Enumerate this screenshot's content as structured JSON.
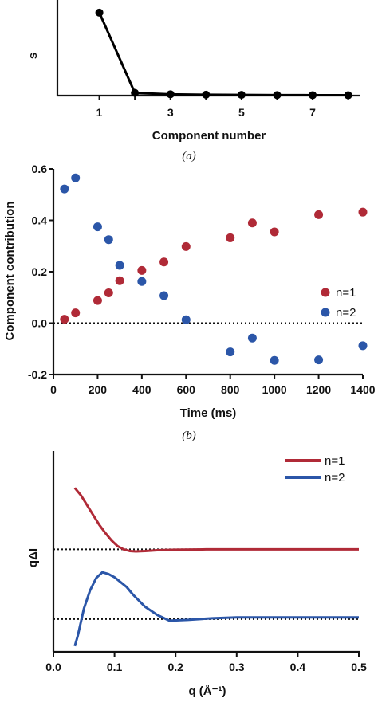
{
  "chart_data": [
    {
      "type": "line",
      "panel_label": "(a)",
      "xlabel": "Component number",
      "ylabel": "s",
      "x_ticks": [
        "1",
        "3",
        "5",
        "7"
      ],
      "x": [
        1,
        2,
        3,
        4,
        5,
        6,
        7,
        8
      ],
      "values": [
        0.93,
        0.03,
        0.015,
        0.01,
        0.008,
        0.006,
        0.005,
        0.004
      ],
      "xlim": [
        0,
        8.3
      ],
      "ylim": [
        0,
        1.0
      ],
      "marker": "circle",
      "color": "#000000"
    },
    {
      "type": "scatter",
      "panel_label": "(b)",
      "xlabel": "Time (ms)",
      "ylabel": "Component contribution",
      "x_ticks": [
        "0",
        "200",
        "400",
        "600",
        "800",
        "1000",
        "1200",
        "1400"
      ],
      "y_ticks": [
        "-0.2",
        "0.0",
        "0.2",
        "0.4",
        "0.6"
      ],
      "xlim": [
        0,
        1400
      ],
      "ylim": [
        -0.2,
        0.6
      ],
      "zero_line": "dotted",
      "legend_position": "right",
      "series": [
        {
          "name": "n=1",
          "color": "#b02a37",
          "points": [
            [
              50,
              0.015
            ],
            [
              100,
              0.04
            ],
            [
              200,
              0.088
            ],
            [
              250,
              0.118
            ],
            [
              300,
              0.165
            ],
            [
              400,
              0.205
            ],
            [
              500,
              0.238
            ],
            [
              600,
              0.298
            ],
            [
              800,
              0.332
            ],
            [
              900,
              0.39
            ],
            [
              1000,
              0.355
            ],
            [
              1200,
              0.422
            ],
            [
              1400,
              0.432
            ]
          ]
        },
        {
          "name": "n=2",
          "color": "#2b56a8",
          "points": [
            [
              50,
              0.522
            ],
            [
              100,
              0.565
            ],
            [
              200,
              0.375
            ],
            [
              250,
              0.325
            ],
            [
              300,
              0.225
            ],
            [
              400,
              0.162
            ],
            [
              500,
              0.107
            ],
            [
              600,
              0.013
            ],
            [
              800,
              -0.112
            ],
            [
              900,
              -0.058
            ],
            [
              1000,
              -0.145
            ],
            [
              1200,
              -0.143
            ],
            [
              1400,
              -0.088
            ]
          ]
        }
      ]
    },
    {
      "type": "line",
      "xlabel": "q (Å⁻¹)",
      "ylabel": "qΔI",
      "x_ticks": [
        "0.0",
        "0.1",
        "0.2",
        "0.3",
        "0.4",
        "0.5"
      ],
      "xlim": [
        0,
        0.5
      ],
      "ylim": [
        -1.25,
        1.2
      ],
      "legend_position": "top-right",
      "series": [
        {
          "name": "n=1",
          "color": "#b02a37",
          "baseline": 0.0,
          "x": [
            0.035,
            0.045,
            0.055,
            0.065,
            0.075,
            0.085,
            0.095,
            0.105,
            0.115,
            0.125,
            0.135,
            0.15,
            0.17,
            0.2,
            0.25,
            0.3,
            0.35,
            0.4,
            0.45,
            0.5
          ],
          "values": [
            0.75,
            0.66,
            0.54,
            0.42,
            0.3,
            0.2,
            0.11,
            0.04,
            0.0,
            -0.02,
            -0.025,
            -0.02,
            -0.01,
            -0.004,
            0.0,
            0.0,
            0.0,
            0.0,
            0.0,
            0.0
          ]
        },
        {
          "name": "n=2",
          "color": "#2b56a8",
          "baseline": -0.85,
          "x": [
            0.035,
            0.04,
            0.05,
            0.06,
            0.07,
            0.08,
            0.09,
            0.1,
            0.11,
            0.12,
            0.13,
            0.15,
            0.17,
            0.19,
            0.22,
            0.26,
            0.3,
            0.35,
            0.4,
            0.45,
            0.5
          ],
          "values": [
            -1.18,
            -1.05,
            -0.72,
            -0.5,
            -0.35,
            -0.28,
            -0.3,
            -0.34,
            -0.4,
            -0.46,
            -0.55,
            -0.7,
            -0.8,
            -0.87,
            -0.86,
            -0.84,
            -0.83,
            -0.83,
            -0.83,
            -0.83,
            -0.83
          ]
        }
      ]
    }
  ]
}
